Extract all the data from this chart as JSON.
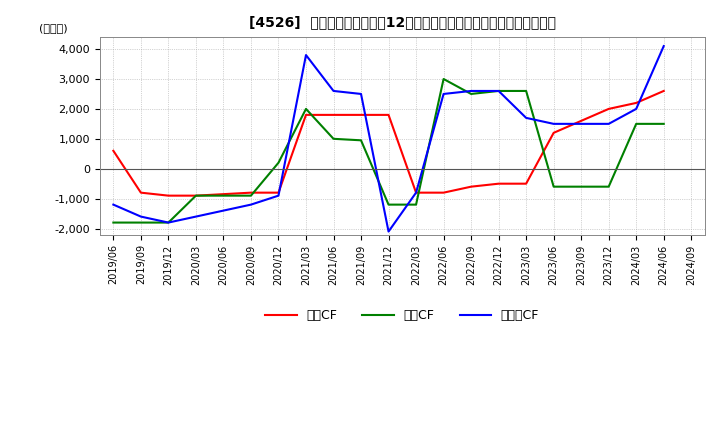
{
  "title": "[4526]  キャッシュフローの12か月移動合計の対前年同期増減額の推移",
  "ylabel": "(百万円)",
  "ylim": [
    -2200,
    4400
  ],
  "yticks": [
    -2000,
    -1000,
    0,
    1000,
    2000,
    3000,
    4000
  ],
  "x_labels": [
    "2019/06",
    "2019/09",
    "2019/12",
    "2020/03",
    "2020/06",
    "2020/09",
    "2020/12",
    "2021/03",
    "2021/06",
    "2021/09",
    "2021/12",
    "2022/03",
    "2022/06",
    "2022/09",
    "2022/12",
    "2023/03",
    "2023/06",
    "2023/09",
    "2023/12",
    "2024/03",
    "2024/06",
    "2024/09"
  ],
  "operating_cf": [
    600,
    -800,
    -900,
    -900,
    -850,
    -800,
    -800,
    1800,
    1800,
    1800,
    1800,
    -800,
    -800,
    -600,
    -500,
    -500,
    1200,
    1600,
    2000,
    2200,
    2600,
    null
  ],
  "investing_cf": [
    -1800,
    -1800,
    -1800,
    -900,
    -900,
    -900,
    200,
    2000,
    1000,
    950,
    -1200,
    -1200,
    3000,
    2500,
    2600,
    2600,
    -600,
    -600,
    -600,
    1500,
    1500,
    null
  ],
  "free_cf": [
    -1200,
    -1600,
    -1800,
    -1600,
    -1400,
    -1200,
    -900,
    3800,
    2600,
    2500,
    -2100,
    -800,
    2500,
    2600,
    2600,
    1700,
    1500,
    1500,
    1500,
    2000,
    4100,
    null
  ],
  "operating_color": "#ff0000",
  "investing_color": "#008000",
  "free_color": "#0000ff",
  "bg_color": "#ffffff",
  "grid_color": "#aaaaaa",
  "legend_labels": [
    "営業CF",
    "投資CF",
    "フリーCF"
  ]
}
